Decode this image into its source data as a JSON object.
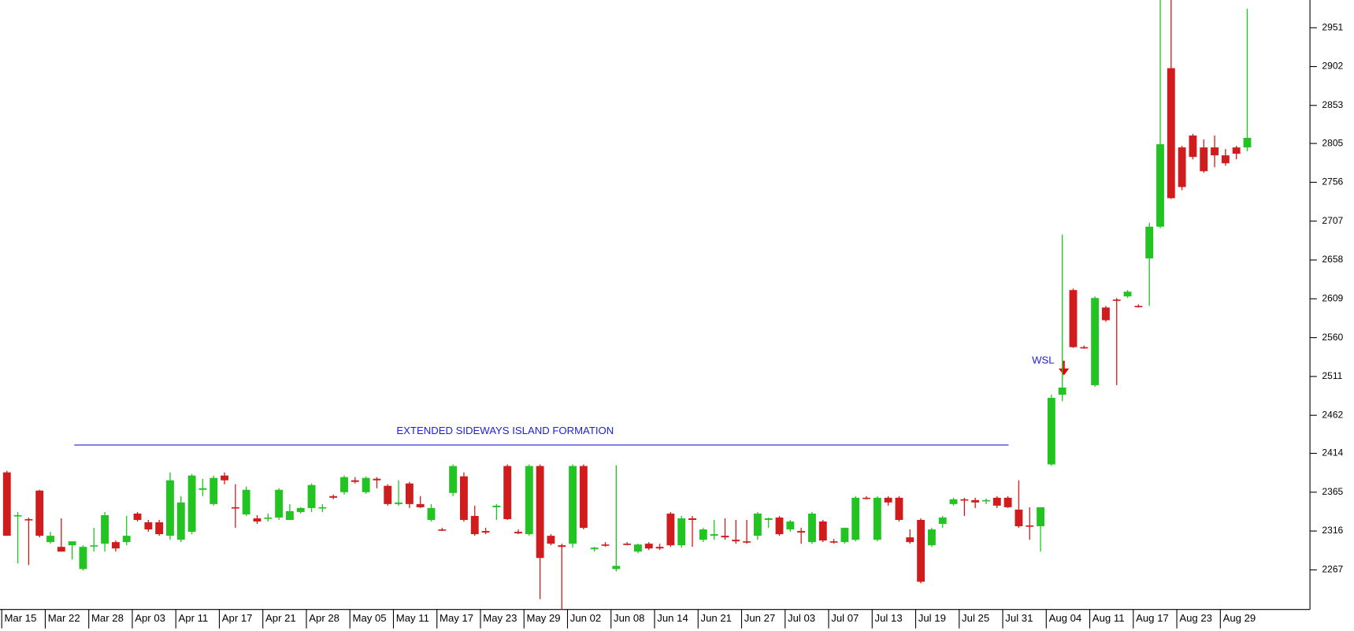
{
  "chart_data": {
    "type": "candlestick",
    "categories": [
      "Mar 15",
      null,
      null,
      null,
      "Mar 22",
      null,
      null,
      null,
      "Mar 28",
      null,
      null,
      null,
      "Apr 03",
      null,
      null,
      null,
      "Apr 11",
      null,
      null,
      null,
      "Apr 17",
      null,
      null,
      null,
      "Apr 21",
      null,
      null,
      null,
      "Apr 28",
      null,
      null,
      null,
      "May 05",
      null,
      null,
      null,
      "May 11",
      null,
      null,
      null,
      "May 17",
      null,
      null,
      null,
      "May 23",
      null,
      null,
      null,
      "May 29",
      null,
      null,
      null,
      "Jun 02",
      null,
      null,
      null,
      "Jun 08",
      null,
      null,
      null,
      "Jun 14",
      null,
      null,
      null,
      "Jun 21",
      null,
      null,
      null,
      "Jun 27",
      null,
      null,
      null,
      "Jul 03",
      null,
      null,
      null,
      "Jul 07",
      null,
      null,
      null,
      "Jul 13",
      null,
      null,
      null,
      "Jul 19",
      null,
      null,
      null,
      "Jul 25",
      null,
      null,
      null,
      "Jul 31",
      null,
      null,
      null,
      "Aug 04",
      null,
      null,
      null,
      "Aug 11",
      null,
      null,
      null,
      "Aug 17",
      null,
      null,
      null,
      "Aug 23",
      null,
      null,
      null,
      "Aug 29",
      null,
      null
    ],
    "open": [
      2390,
      2335,
      2331,
      2367,
      2302,
      2296,
      2298,
      2268,
      2297,
      2300,
      2302,
      2302,
      2338,
      2327,
      2327,
      2310,
      2305,
      2315,
      2368,
      2350,
      2386,
      2346,
      2337,
      2332,
      2332,
      2333,
      2330,
      2340,
      2345,
      2346,
      2360,
      2365,
      2380,
      2365,
      2382,
      2373,
      2350,
      2376,
      2350,
      2330,
      2318,
      2364,
      2385,
      2335,
      2316,
      2346,
      2398,
      2315,
      2312,
      2398,
      2310,
      2298,
      2300,
      2398,
      2293,
      2299,
      2268,
      2300,
      2290,
      2300,
      2296,
      2338,
      2298,
      2332,
      2305,
      2310,
      2310,
      2305,
      2303,
      2310,
      2330,
      2333,
      2318,
      2316,
      2302,
      2328,
      2303,
      2302,
      2305,
      2358,
      2305,
      2358,
      2358,
      2308,
      2330,
      2298,
      2325,
      2350,
      2356,
      2355,
      2354,
      2358,
      2358,
      2343,
      2323,
      2322,
      2400,
      2488,
      2620,
      2548,
      2500,
      2598,
      2608,
      2612,
      2600,
      2660,
      2700,
      2900,
      2800,
      2815,
      2800,
      2800,
      2790,
      2800,
      2800
    ],
    "high": [
      2392,
      2340,
      2333,
      2368,
      2315,
      2332,
      2302,
      2298,
      2320,
      2340,
      2304,
      2335,
      2340,
      2330,
      2330,
      2390,
      2360,
      2388,
      2382,
      2386,
      2390,
      2375,
      2372,
      2336,
      2338,
      2370,
      2350,
      2346,
      2376,
      2350,
      2362,
      2386,
      2384,
      2385,
      2384,
      2375,
      2380,
      2378,
      2360,
      2350,
      2320,
      2400,
      2390,
      2348,
      2320,
      2350,
      2400,
      2318,
      2400,
      2400,
      2312,
      2300,
      2400,
      2400,
      2296,
      2302,
      2399,
      2302,
      2300,
      2302,
      2300,
      2340,
      2335,
      2335,
      2320,
      2330,
      2332,
      2330,
      2330,
      2340,
      2333,
      2335,
      2330,
      2320,
      2340,
      2330,
      2306,
      2320,
      2360,
      2360,
      2360,
      2360,
      2360,
      2318,
      2332,
      2320,
      2335,
      2358,
      2358,
      2358,
      2357,
      2360,
      2360,
      2380,
      2346,
      2345,
      2488,
      2690,
      2622,
      2550,
      2612,
      2600,
      2610,
      2620,
      2602,
      2705,
      2986,
      2986,
      2802,
      2817,
      2810,
      2815,
      2798,
      2802,
      2975
    ],
    "low": [
      2310,
      2275,
      2273,
      2308,
      2300,
      2290,
      2280,
      2266,
      2290,
      2290,
      2290,
      2298,
      2328,
      2315,
      2310,
      2305,
      2302,
      2312,
      2360,
      2348,
      2375,
      2320,
      2335,
      2325,
      2328,
      2330,
      2330,
      2338,
      2340,
      2340,
      2356,
      2362,
      2376,
      2363,
      2370,
      2348,
      2348,
      2345,
      2345,
      2328,
      2316,
      2360,
      2328,
      2310,
      2312,
      2330,
      2330,
      2312,
      2310,
      2230,
      2298,
      2217,
      2295,
      2318,
      2290,
      2296,
      2265,
      2298,
      2288,
      2292,
      2292,
      2296,
      2295,
      2296,
      2302,
      2305,
      2305,
      2300,
      2300,
      2305,
      2320,
      2310,
      2315,
      2300,
      2300,
      2302,
      2300,
      2300,
      2303,
      2356,
      2303,
      2348,
      2328,
      2300,
      2250,
      2296,
      2320,
      2348,
      2335,
      2345,
      2350,
      2345,
      2345,
      2320,
      2305,
      2290,
      2398,
      2480,
      2547,
      2546,
      2498,
      2580,
      2500,
      2610,
      2598,
      2600,
      2698,
      2735,
      2746,
      2785,
      2768,
      2775,
      2777,
      2785,
      2795
    ],
    "close": [
      2310,
      2336,
      2330,
      2310,
      2310,
      2290,
      2303,
      2296,
      2298,
      2336,
      2294,
      2310,
      2330,
      2318,
      2312,
      2380,
      2352,
      2386,
      2370,
      2383,
      2380,
      2345,
      2368,
      2328,
      2333,
      2368,
      2341,
      2345,
      2374,
      2346,
      2358,
      2384,
      2378,
      2383,
      2380,
      2350,
      2352,
      2350,
      2346,
      2345,
      2317,
      2398,
      2330,
      2312,
      2314,
      2348,
      2331,
      2313,
      2398,
      2282,
      2300,
      2296,
      2398,
      2320,
      2295,
      2298,
      2272,
      2299,
      2299,
      2294,
      2294,
      2298,
      2332,
      2330,
      2318,
      2312,
      2308,
      2303,
      2302,
      2338,
      2332,
      2312,
      2328,
      2314,
      2338,
      2304,
      2302,
      2320,
      2358,
      2357,
      2358,
      2352,
      2330,
      2302,
      2252,
      2318,
      2333,
      2356,
      2355,
      2352,
      2355,
      2348,
      2346,
      2322,
      2322,
      2346,
      2484,
      2497,
      2548,
      2547,
      2610,
      2582,
      2607,
      2618,
      2599,
      2700,
      2804,
      2736,
      2750,
      2788,
      2770,
      2790,
      2780,
      2792,
      2812
    ],
    "up_color": "#22c422",
    "down_color": "#d01c1c",
    "ylim": [
      2217,
      2986
    ],
    "yticks": [
      2267,
      2316,
      2365,
      2414,
      2462,
      2511,
      2560,
      2609,
      2658,
      2707,
      2756,
      2805,
      2853,
      2902,
      2951
    ],
    "annotations": [
      {
        "text": "EXTENDED SIDEWAYS ISLAND FORMATION"
      },
      {
        "text": "WSL"
      }
    ]
  }
}
